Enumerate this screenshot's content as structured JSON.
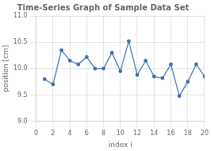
{
  "chart_data": {
    "type": "line",
    "title": "Time-Series Graph of Sample Data Set",
    "xlabel": "index i",
    "ylabel": "position [cm]",
    "x": [
      1,
      2,
      3,
      4,
      5,
      6,
      7,
      8,
      9,
      10,
      11,
      12,
      13,
      14,
      15,
      16,
      17,
      18,
      19,
      20
    ],
    "values": [
      9.8,
      9.7,
      10.35,
      10.15,
      10.08,
      10.22,
      10.0,
      10.0,
      10.3,
      9.95,
      10.52,
      9.88,
      10.15,
      9.85,
      9.82,
      10.08,
      9.48,
      9.75,
      10.08,
      9.85
    ],
    "color": "#3d72b0",
    "marker": "circle",
    "xlim": [
      0,
      20
    ],
    "ylim": [
      9.0,
      11.0
    ],
    "xticks": [
      0,
      2,
      4,
      6,
      8,
      10,
      12,
      14,
      16,
      18,
      20
    ],
    "yticks": [
      {
        "value": 9.0,
        "label": "9.0"
      },
      9.5,
      {
        "value": 10.0,
        "label": "10.0"
      },
      10.5,
      {
        "value": 11.0,
        "label": "11.0"
      }
    ],
    "grid": true
  }
}
